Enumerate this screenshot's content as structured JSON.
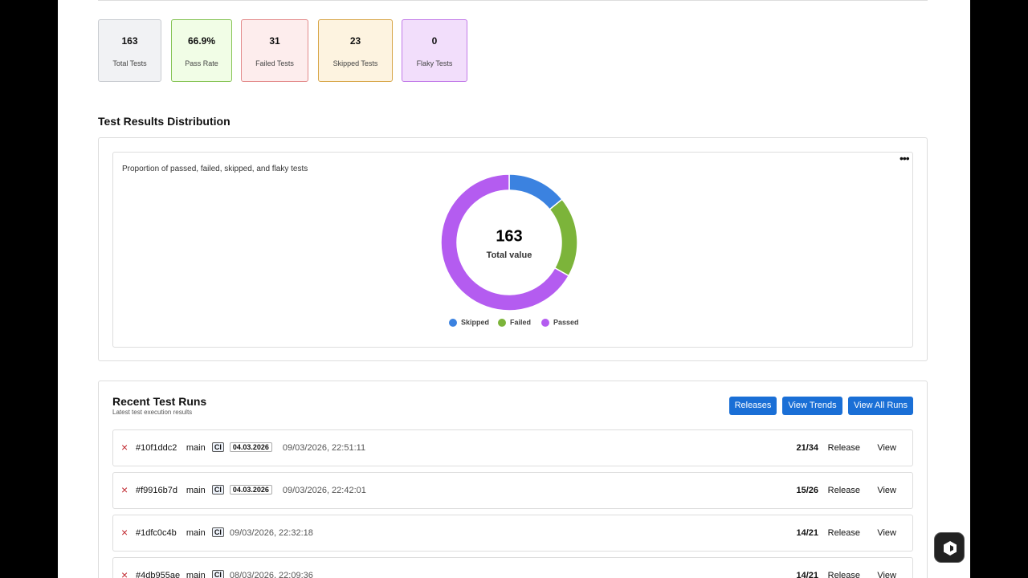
{
  "stats": [
    {
      "value": "163",
      "label": "Total Tests"
    },
    {
      "value": "66.9%",
      "label": "Pass Rate"
    },
    {
      "value": "31",
      "label": "Failed Tests"
    },
    {
      "value": "23",
      "label": "Skipped Tests"
    },
    {
      "value": "0",
      "label": "Flaky Tests"
    }
  ],
  "distribution": {
    "heading": "Test Results Distribution"
  },
  "chart_data": {
    "type": "pie",
    "subtitle": "Proportion of passed, failed, skipped, and flaky tests",
    "center_value": 163,
    "center_label": "Total value",
    "categories": [
      "Skipped",
      "Failed",
      "Passed"
    ],
    "values": [
      23,
      31,
      109
    ],
    "colors": [
      "#3b82e0",
      "#7cb43a",
      "#b45cf0"
    ]
  },
  "runs": {
    "title": "Recent Test Runs",
    "subtitle": "Latest test execution results",
    "buttons": [
      "Releases",
      "View Trends",
      "View All Runs"
    ],
    "rows": [
      {
        "status": "×",
        "id": "#10f1ddc2",
        "branch": "main",
        "badge": "CI",
        "tag": "04.03.2026",
        "time": "09/03/2026, 22:51:11",
        "ratio": "21/34",
        "release": "Release",
        "view": "View"
      },
      {
        "status": "×",
        "id": "#f9916b7d",
        "branch": "main",
        "badge": "CI",
        "tag": "04.03.2026",
        "time": "09/03/2026, 22:42:01",
        "ratio": "15/26",
        "release": "Release",
        "view": "View"
      },
      {
        "status": "×",
        "id": "#1dfc0c4b",
        "branch": "main",
        "badge": "CI",
        "time": "09/03/2026, 22:32:18",
        "ratio": "14/21",
        "release": "Release",
        "view": "View"
      },
      {
        "status": "×",
        "id": "#4db955ae",
        "branch": "main",
        "badge": "CI",
        "time": "08/03/2026, 22:09:36",
        "ratio": "14/21",
        "release": "Release",
        "view": "View"
      }
    ]
  }
}
